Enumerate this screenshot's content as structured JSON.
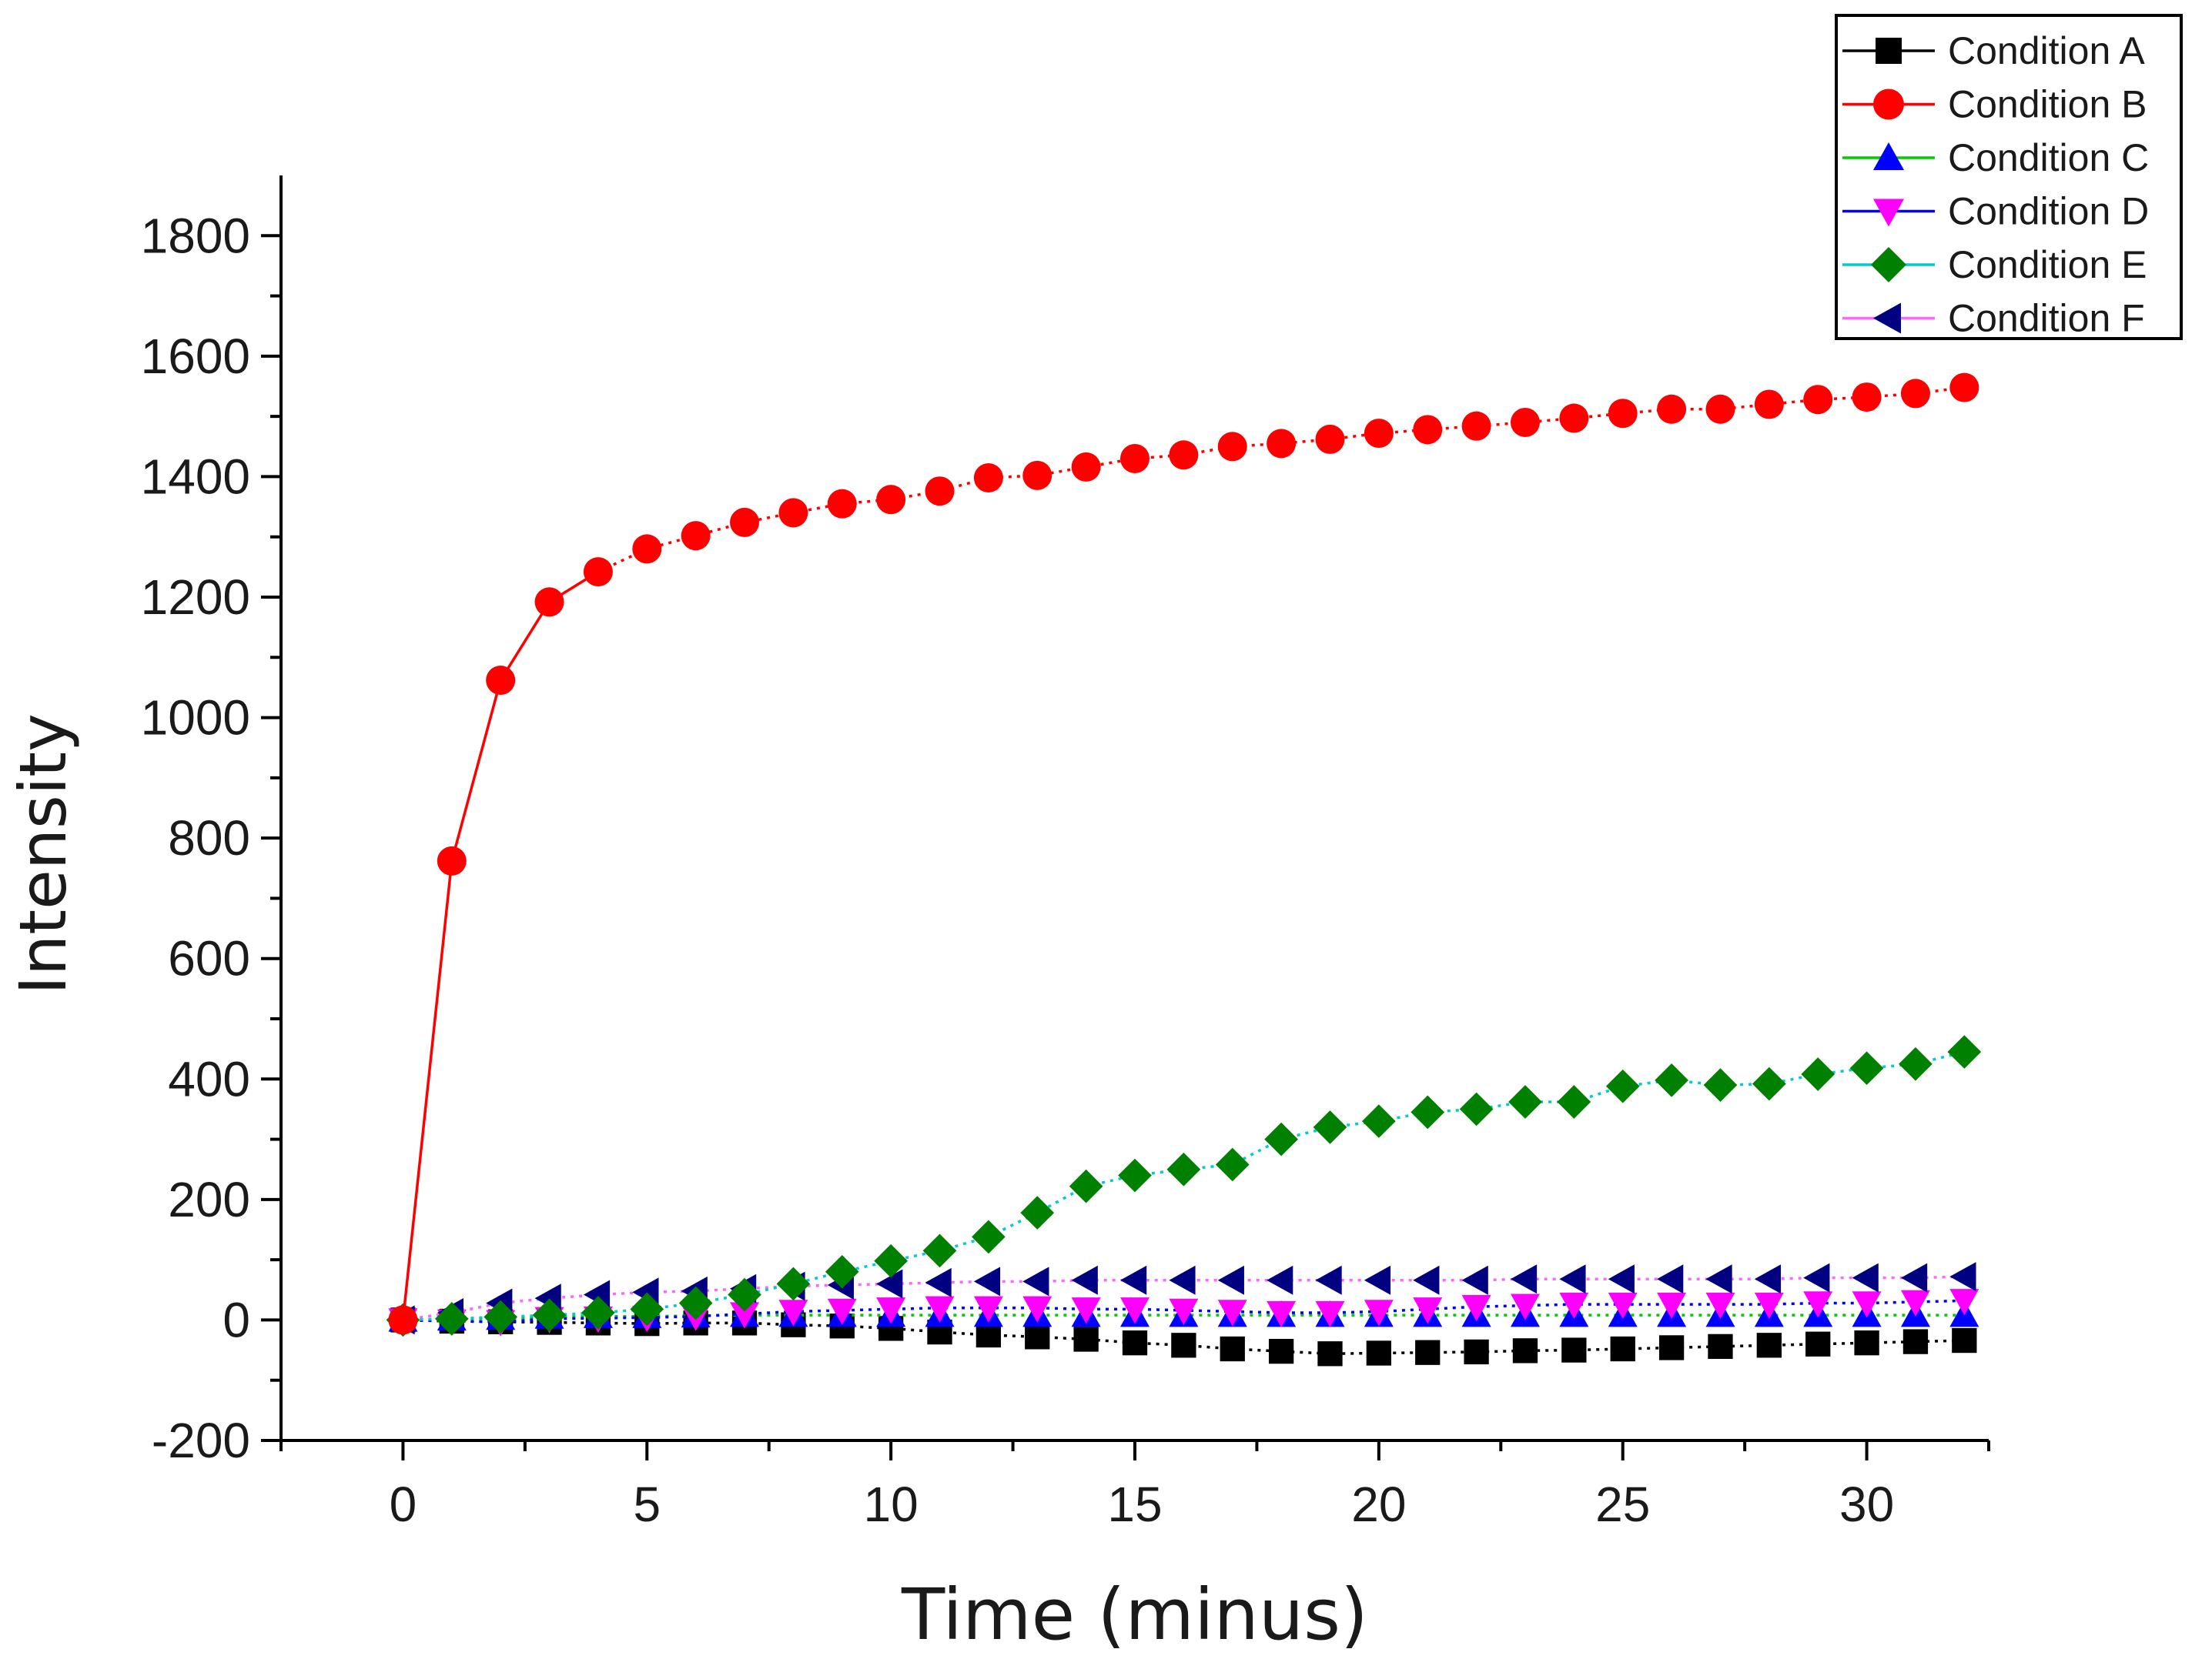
{
  "chart_data": {
    "type": "line",
    "title": "",
    "xlabel": "Time (minus)",
    "ylabel": "Intensity",
    "xlim": [
      -2.5,
      32.5
    ],
    "ylim": [
      -200,
      1900
    ],
    "xticks": [
      0,
      5,
      10,
      15,
      20,
      25,
      30
    ],
    "yticks": [
      -200,
      0,
      200,
      400,
      600,
      800,
      1000,
      1200,
      1400,
      1600,
      1800
    ],
    "grid": false,
    "legend_position": "top-right",
    "x": [
      0,
      1,
      2,
      3,
      4,
      5,
      6,
      7,
      8,
      9,
      10,
      11,
      12,
      13,
      14,
      15,
      16,
      17,
      18,
      19,
      20,
      21,
      22,
      23,
      24,
      25,
      26,
      27,
      28,
      29,
      30,
      31,
      32
    ],
    "series": [
      {
        "name": "Condition A",
        "color": "#000000",
        "marker": "square",
        "line": "dotted",
        "values": [
          0,
          -2,
          -3,
          -4,
          -5,
          -6,
          -5,
          -5,
          -8,
          -10,
          -14,
          -20,
          -25,
          -28,
          -32,
          -38,
          -42,
          -48,
          -52,
          -56,
          -55,
          -54,
          -53,
          -51,
          -50,
          -48,
          -46,
          -44,
          -42,
          -40,
          -38,
          -36,
          -34
        ]
      },
      {
        "name": "Condition B",
        "color": "#ff0000",
        "marker": "circle",
        "line": "solid-then-dotted",
        "values": [
          0,
          762,
          1062,
          1192,
          1242,
          1280,
          1302,
          1324,
          1340,
          1355,
          1362,
          1376,
          1398,
          1402,
          1416,
          1430,
          1436,
          1450,
          1455,
          1462,
          1472,
          1478,
          1484,
          1490,
          1497,
          1505,
          1512,
          1512,
          1520,
          1528,
          1532,
          1538,
          1548
        ]
      },
      {
        "name": "Condition C",
        "color": "#0000ff",
        "marker": "triangle-up",
        "line": "dotted",
        "line_color": "#00cc00",
        "values": [
          0,
          2,
          3,
          5,
          6,
          6,
          7,
          8,
          8,
          8,
          8,
          8,
          8,
          8,
          8,
          8,
          8,
          8,
          8,
          8,
          8,
          8,
          8,
          8,
          8,
          8,
          8,
          8,
          8,
          8,
          8,
          8,
          8
        ]
      },
      {
        "name": "Condition D",
        "color": "#ff00ff",
        "marker": "triangle-down",
        "line": "dotted",
        "line_color": "#0000ff",
        "values": [
          0,
          -2,
          -3,
          2,
          3,
          4,
          6,
          10,
          14,
          16,
          18,
          20,
          20,
          20,
          18,
          18,
          16,
          14,
          12,
          12,
          14,
          18,
          22,
          24,
          26,
          26,
          26,
          26,
          26,
          28,
          28,
          30,
          32
        ]
      },
      {
        "name": "Condition E",
        "color": "#008000",
        "marker": "diamond",
        "line": "dotted",
        "line_color": "#00cccc",
        "values": [
          0,
          2,
          5,
          8,
          12,
          18,
          28,
          42,
          60,
          80,
          98,
          115,
          138,
          178,
          222,
          240,
          250,
          258,
          300,
          320,
          330,
          345,
          350,
          362,
          362,
          388,
          398,
          390,
          392,
          408,
          418,
          425,
          445
        ]
      },
      {
        "name": "Condition F",
        "color": "#000080",
        "marker": "triangle-left",
        "line": "dotted",
        "line_color": "#ff66ff",
        "values": [
          0,
          12,
          28,
          36,
          42,
          46,
          48,
          52,
          56,
          58,
          60,
          62,
          64,
          64,
          66,
          66,
          66,
          66,
          66,
          66,
          66,
          66,
          66,
          68,
          68,
          68,
          68,
          68,
          68,
          70,
          70,
          70,
          72
        ]
      }
    ]
  }
}
